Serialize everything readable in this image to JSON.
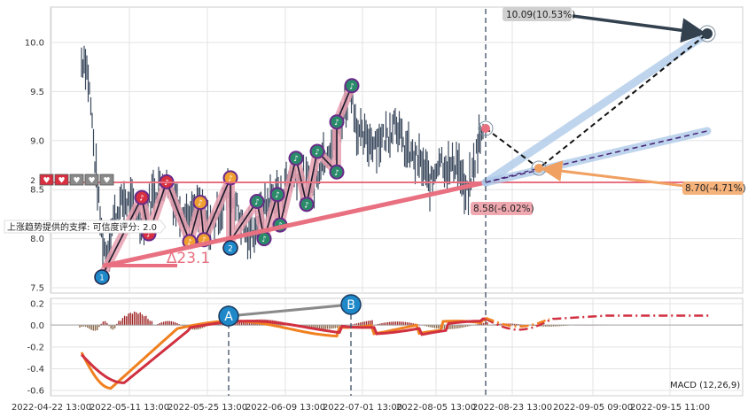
{
  "chart_data": [
    {
      "type": "candlestick",
      "panel": "price",
      "ylim": [
        7.4,
        10.5
      ],
      "yticks": [
        7.5,
        8.0,
        8.5,
        9.0,
        9.5,
        10.0
      ],
      "ytick_labels": [
        "7.5",
        "8.0",
        "8.5",
        "9.0",
        "9.5",
        "10.0"
      ],
      "grid": true,
      "xtick_labels": [
        "2022-04-22 13:00",
        "2022-05-11 13:00",
        "2022-05-25 13:00",
        "2022-06-09 13:00",
        "2022-07-01 13:00",
        "2022-08-05 13:00",
        "2022-08-23 13:00",
        "2022-09-05 09:00",
        "2022-09-15 11:00"
      ],
      "support_line": {
        "label": "上涨趋势提供的支撑: 可信度评分: 2.0",
        "level": 8.57
      },
      "trend_angle_label": "∆23.1",
      "markers": [
        {
          "id": "1",
          "x": 0.038,
          "y": 7.62
        },
        {
          "id": "2",
          "x": 0.225,
          "y": 7.98
        }
      ],
      "projections": [
        {
          "label": "10.09(10.53%)",
          "value": 10.09,
          "change_pct": 10.53
        },
        {
          "label": "8.70(-4.71%)",
          "value": 8.7,
          "change_pct": -4.71
        },
        {
          "label": "8.58(-6.02%)",
          "value": 8.58,
          "change_pct": -6.02
        }
      ],
      "colors": {
        "candles": "#3c4a5e",
        "trend_line": "#e87080",
        "projection_up": "#33414f",
        "projection_down": "#f0a060",
        "halo": "#aac8e8"
      }
    },
    {
      "type": "line",
      "panel": "macd",
      "label": "MACD (12,26,9)",
      "ylim": [
        -0.65,
        0.25
      ],
      "yticks": [
        -0.6,
        -0.4,
        -0.2,
        0.0,
        0.2
      ],
      "ytick_labels": [
        "-0.6",
        "-0.4",
        "-0.2",
        "0.0",
        "0.2"
      ],
      "points": [
        {
          "name": "A",
          "value": 0.1
        },
        {
          "name": "B",
          "value": 0.19
        }
      ],
      "colors": {
        "macd": "#f08020",
        "signal": "#d03040",
        "hist_pos": "#a02828",
        "hist_neg": "#8b6a4a",
        "marker": "#1e88c8"
      }
    }
  ]
}
